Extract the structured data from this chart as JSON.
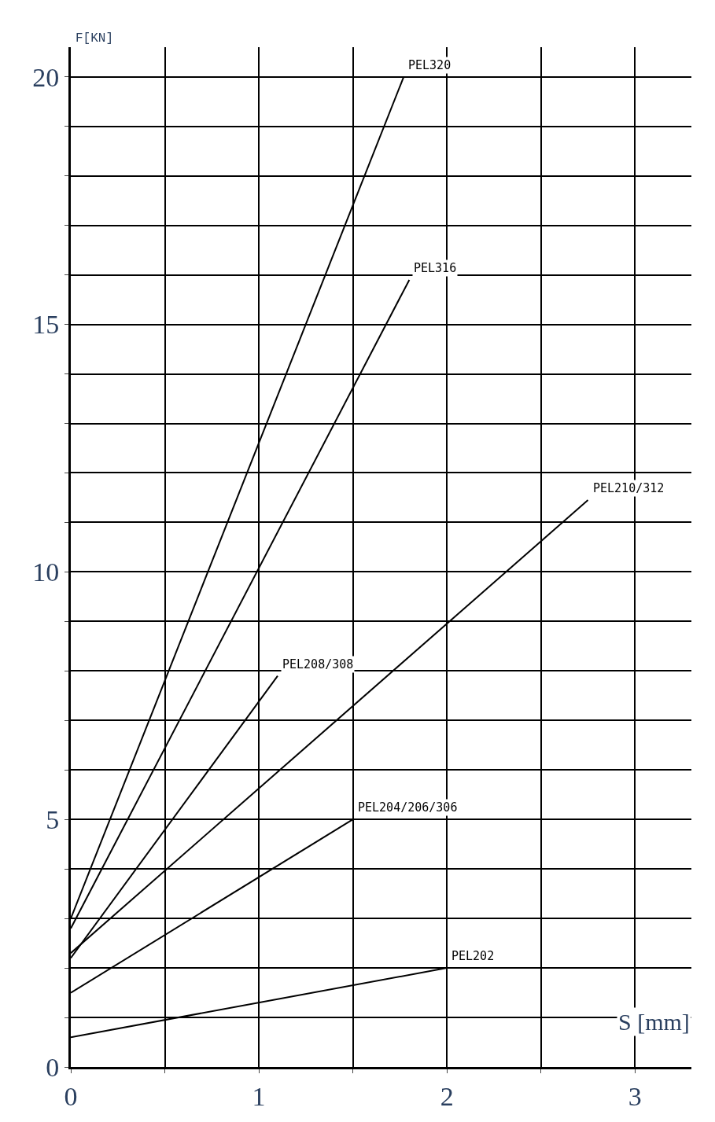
{
  "chart_data": {
    "type": "line",
    "xlabel": "S [mm]",
    "ylabel": "F[KN]",
    "series": [
      {
        "name": "PEL320",
        "color": "#000000",
        "x": [
          0,
          1.77
        ],
        "values": [
          3.0,
          20
        ]
      },
      {
        "name": "PEL316",
        "color": "#000000",
        "x": [
          0,
          1.8
        ],
        "values": [
          2.8,
          15.9
        ]
      },
      {
        "name": "PEL208/308",
        "color": "#000000",
        "x": [
          0,
          1.1
        ],
        "values": [
          2.2,
          7.9
        ]
      },
      {
        "name": "PEL210/312",
        "color": "#000000",
        "x": [
          0,
          2.75
        ],
        "values": [
          2.3,
          11.45
        ]
      },
      {
        "name": "PEL204/206/306",
        "color": "#000000",
        "x": [
          0,
          1.5
        ],
        "values": [
          1.5,
          5.0
        ]
      },
      {
        "name": "PEL202",
        "color": "#000000",
        "x": [
          0,
          2.0
        ],
        "values": [
          0.6,
          2.0
        ]
      }
    ],
    "xlim": [
      0,
      3.3
    ],
    "ylim": [
      0,
      20.6
    ],
    "xticks": [
      0,
      {
        "value": 0.5,
        "label": null
      },
      1,
      {
        "value": 1.5,
        "label": null
      },
      2,
      {
        "value": 2.5,
        "label": null
      },
      3
    ],
    "yticks": [
      0,
      {
        "value": 1,
        "label": null
      },
      {
        "value": 2,
        "label": null
      },
      {
        "value": 3,
        "label": null
      },
      {
        "value": 4,
        "label": null
      },
      5,
      {
        "value": 6,
        "label": null
      },
      {
        "value": 7,
        "label": null
      },
      {
        "value": 8,
        "label": null
      },
      {
        "value": 9,
        "label": null
      },
      10,
      {
        "value": 11,
        "label": null
      },
      {
        "value": 12,
        "label": null
      },
      {
        "value": 13,
        "label": null
      },
      {
        "value": 14,
        "label": null
      },
      15,
      {
        "value": 16,
        "label": null
      },
      {
        "value": 17,
        "label": null
      },
      {
        "value": 18,
        "label": null
      },
      {
        "value": 19,
        "label": null
      },
      20
    ],
    "grid": true,
    "legend": false,
    "marker": "none",
    "line_style": "solid"
  }
}
